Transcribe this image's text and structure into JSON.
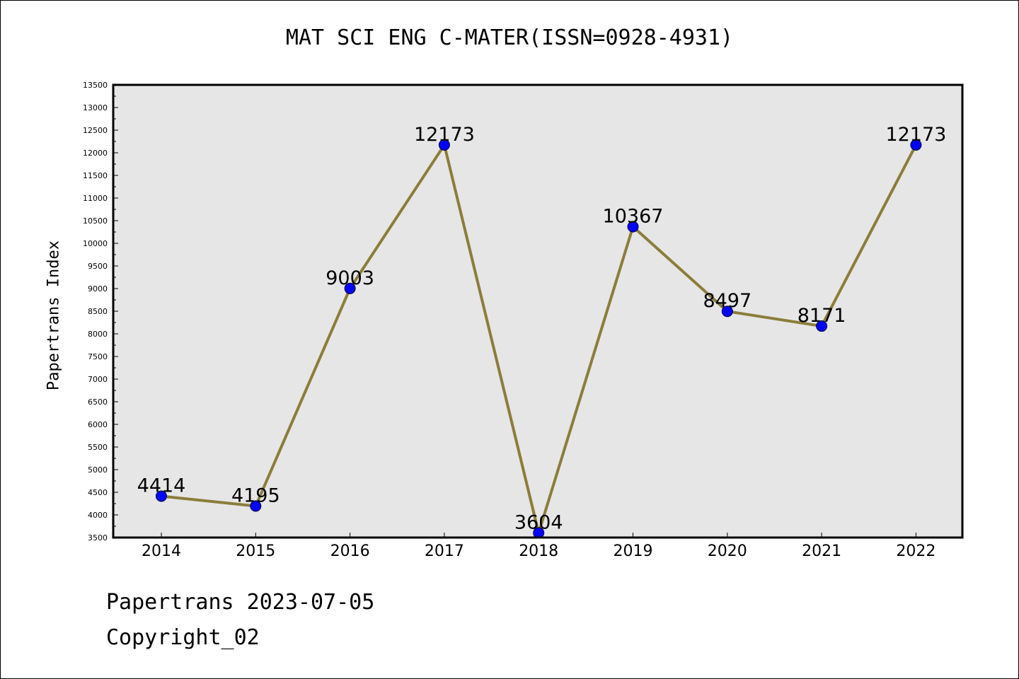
{
  "chart_data": {
    "type": "line",
    "title": "MAT SCI ENG C-MATER(ISSN=0928-4931)",
    "xlabel": "",
    "ylabel": "Papertrans Index",
    "categories": [
      "2014",
      "2015",
      "2016",
      "2017",
      "2018",
      "2019",
      "2020",
      "2021",
      "2022"
    ],
    "series": [
      {
        "values": [
          4414,
          4195,
          9003,
          12173,
          3604,
          10367,
          8497,
          8171,
          12173
        ]
      }
    ],
    "data_labels": [
      "4414",
      "4195",
      "9003",
      "12173",
      "3604",
      "10367",
      "8497",
      "8171",
      "12173"
    ],
    "ylim": [
      3500,
      13500
    ],
    "yticks": [
      3500,
      4000,
      4500,
      5000,
      5500,
      6000,
      6500,
      7000,
      7500,
      8000,
      8500,
      9000,
      9500,
      10000,
      10500,
      11000,
      11500,
      12000,
      12500,
      13000,
      13500
    ],
    "grid": false,
    "legend": "none",
    "colors": {
      "line": "#8b7d3a",
      "marker": "#0000ff",
      "plot_background": "#e6e6e6",
      "frame": "#000000"
    }
  },
  "footer": {
    "date": "Papertrans 2023-07-05",
    "copyright": "Copyright_02"
  }
}
